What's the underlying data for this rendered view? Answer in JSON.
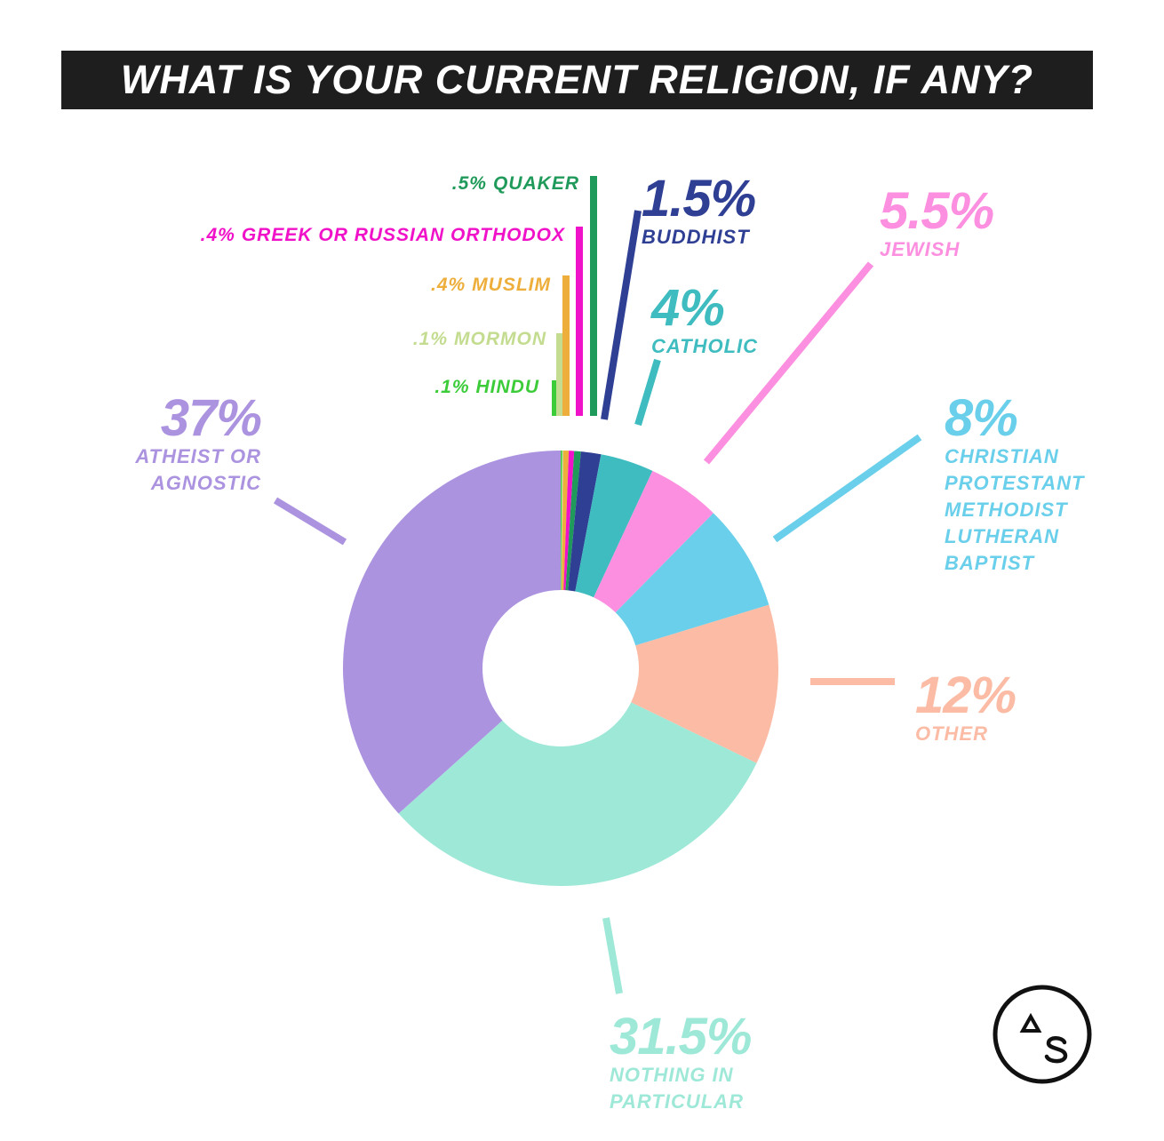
{
  "chart_data": {
    "type": "pie",
    "title": "WHAT IS YOUR CURRENT RELIGION, IF ANY?",
    "categories": [
      "HINDU",
      "MORMON",
      "MUSLIM",
      "GREEK OR RUSSIAN ORTHODOX",
      "QUAKER",
      "BUDDHIST",
      "CATHOLIC",
      "JEWISH",
      "CHRISTIAN PROTESTANT METHODIST LUTHERAN BAPTIST",
      "OTHER",
      "NOTHING IN PARTICULAR",
      "ATHEIST OR AGNOSTIC"
    ],
    "values": [
      0.1,
      0.1,
      0.4,
      0.4,
      0.5,
      1.5,
      4,
      5.5,
      8,
      12,
      31.5,
      37
    ],
    "value_labels": [
      ".1%",
      ".1%",
      ".4%",
      ".4%",
      ".5%",
      "1.5%",
      "4%",
      "5.5%",
      "8%",
      "12%",
      "31.5%",
      "37%"
    ],
    "colors": [
      "#3ccc3a",
      "#c4dc90",
      "#eeae3c",
      "#f012c8",
      "#1f9a5a",
      "#2e3f94",
      "#3ebcbf",
      "#fc8fdf",
      "#6acfea",
      "#fbbba5",
      "#9ee8d8",
      "#ab93e0"
    ]
  }
}
